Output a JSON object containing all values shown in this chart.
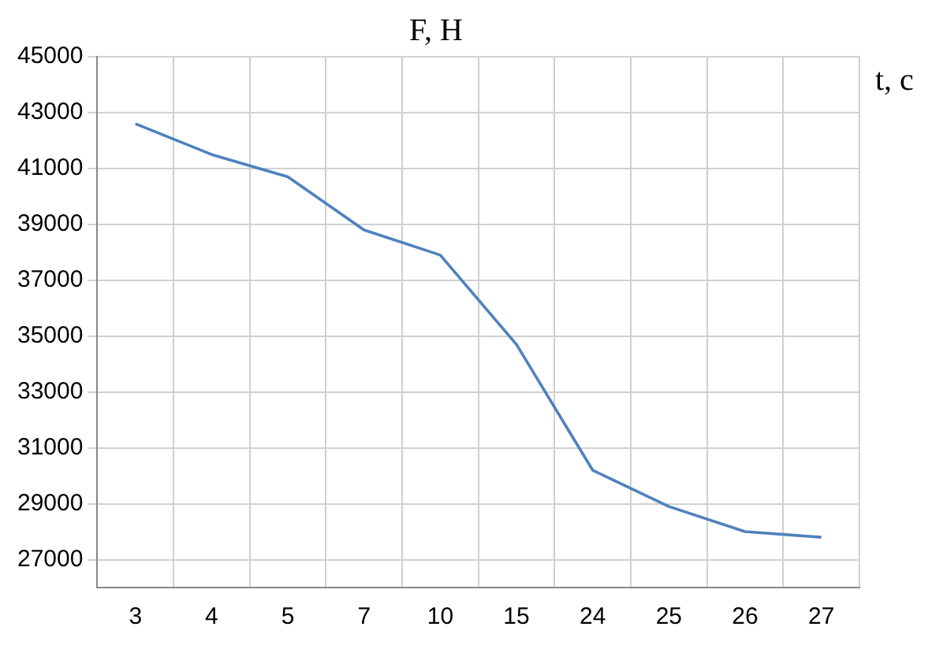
{
  "chart_data": {
    "type": "line",
    "title": "F, Н",
    "xlabel": "t, с",
    "categories": [
      "3",
      "4",
      "5",
      "7",
      "10",
      "15",
      "24",
      "25",
      "26",
      "27"
    ],
    "series": [
      {
        "color": "#4f81bd",
        "values": [
          42600,
          41500,
          40700,
          38800,
          37900,
          34700,
          30200,
          28900,
          28000,
          27800
        ]
      }
    ],
    "ylim": [
      26000,
      45000
    ],
    "yticks": [
      27000,
      29000,
      31000,
      33000,
      35000,
      37000,
      39000,
      41000,
      43000,
      45000
    ],
    "grid": true,
    "legend": false,
    "marker": "none",
    "line_style": "solid"
  }
}
